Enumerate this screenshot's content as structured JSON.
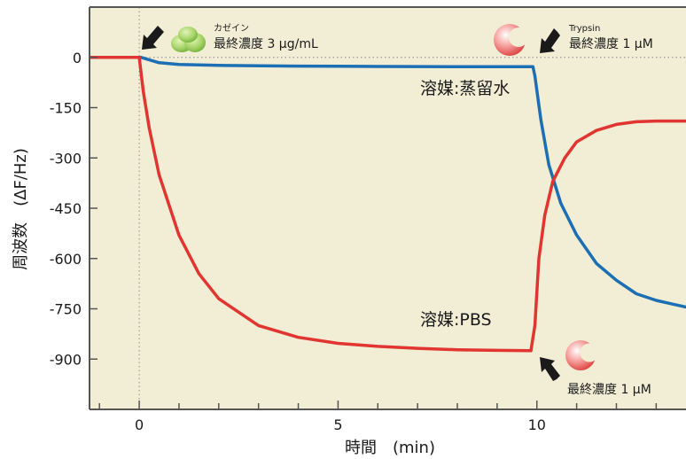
{
  "chart_data": {
    "type": "line",
    "xlabel": "時間　(min)",
    "ylabel": "周波数　(ΔF/Hz)",
    "xlim": [
      -1.25,
      13.75
    ],
    "ylim": [
      -1050,
      150
    ],
    "x_ticks": [
      0,
      5,
      10
    ],
    "x_tick_labels": [
      "0",
      "5",
      "10"
    ],
    "y_ticks": [
      0,
      -150,
      -300,
      -450,
      -600,
      -750,
      -900
    ],
    "y_tick_labels": [
      "0",
      "-150",
      "-300",
      "-450",
      "-600",
      "-750",
      "-900"
    ],
    "grid": false,
    "colors": {
      "background": "#f2eed6",
      "blue": "#1c6fb3",
      "red": "#e03530",
      "frame": "#555555"
    },
    "series": [
      {
        "label": "溶媒:蒸留水",
        "color": "#1c6fb3",
        "x": [
          -1.25,
          0,
          0.05,
          0.5,
          1,
          2,
          4,
          6,
          8,
          9.9,
          9.95,
          10.1,
          10.3,
          10.6,
          11,
          11.5,
          12,
          12.5,
          13,
          13.75
        ],
        "y": [
          0,
          0,
          0,
          -16,
          -21,
          -24,
          -26,
          -27,
          -28,
          -28,
          -55,
          -185,
          -320,
          -435,
          -530,
          -615,
          -665,
          -705,
          -725,
          -745
        ]
      },
      {
        "label": "溶媒:PBS",
        "color": "#e03530",
        "x": [
          -1.25,
          0,
          0.1,
          0.25,
          0.5,
          1,
          1.5,
          2,
          3,
          4,
          5,
          6,
          7,
          8,
          9,
          9.85,
          9.95,
          10.05,
          10.2,
          10.4,
          10.7,
          11,
          11.5,
          12,
          12.5,
          13,
          13.75
        ],
        "y": [
          0,
          0,
          -100,
          -210,
          -350,
          -530,
          -645,
          -720,
          -800,
          -835,
          -853,
          -862,
          -868,
          -872,
          -874,
          -875,
          -800,
          -600,
          -470,
          -370,
          -300,
          -252,
          -218,
          -200,
          -192,
          -190,
          -190
        ]
      }
    ],
    "annotations": {
      "casein_small": "カゼイン",
      "casein_conc": "最終濃度 3 μg/mL",
      "trypsin_small": "Trypsin",
      "trypsin_conc_top": "最終濃度 1 μM",
      "trypsin_conc_bottom": "最終濃度 1 μM",
      "water_label": "溶媒:蒸留水",
      "pbs_label": "溶媒:PBS"
    },
    "icons": [
      "casein-protein-icon",
      "trypsin-enzyme-icon",
      "trypsin-enzyme-icon",
      "arrow-icon"
    ]
  }
}
